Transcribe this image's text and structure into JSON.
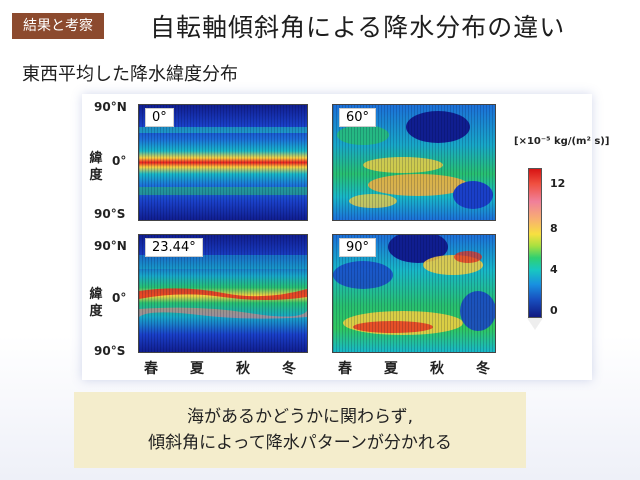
{
  "header": {
    "tag": "結果と考察",
    "title": "自転軸傾斜角による降水分布の違い"
  },
  "subtitle": "東西平均した降水緯度分布",
  "figure": {
    "lat_ticks": [
      "90°N",
      "0°",
      "90°S"
    ],
    "ylabel": "緯度",
    "seasons": [
      "春",
      "夏",
      "秋",
      "冬"
    ],
    "panels": [
      {
        "id": "tilt-0",
        "label": "0°"
      },
      {
        "id": "tilt-60",
        "label": "60°"
      },
      {
        "id": "tilt-23",
        "label": "23.44°"
      },
      {
        "id": "tilt-90",
        "label": "90°"
      }
    ],
    "colorbar": {
      "unit": "[×10⁻⁵ kg/(m² s)]",
      "ticks": [
        "12",
        "8",
        "4",
        "0"
      ]
    }
  },
  "conclusion": {
    "line1": "海があるかどうかに関わらず,",
    "line2": "傾斜角によって降水パターンが分かれる"
  }
}
